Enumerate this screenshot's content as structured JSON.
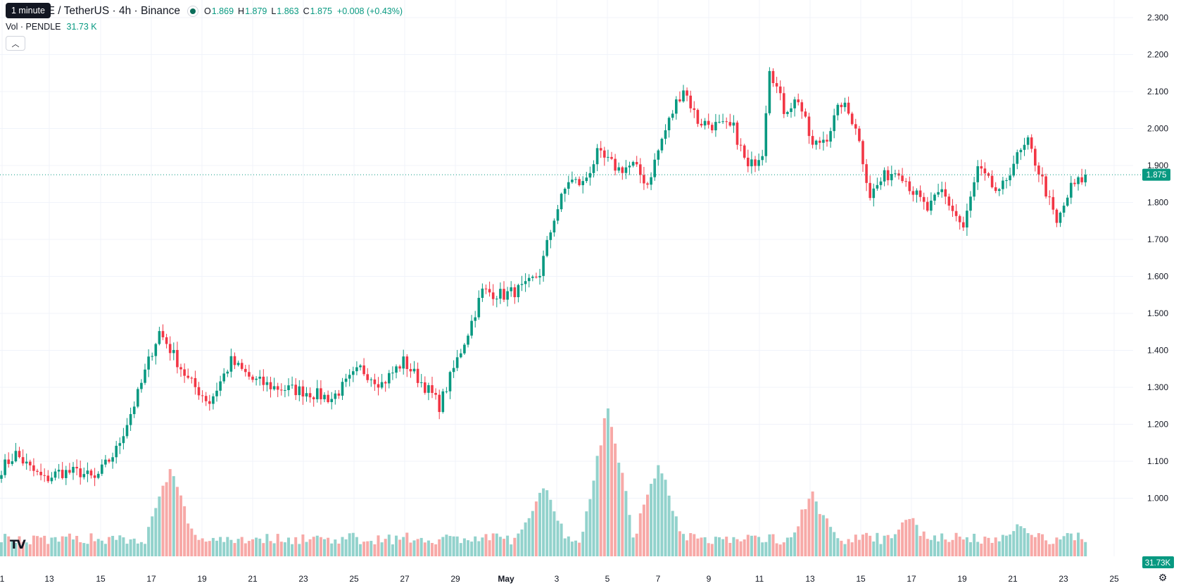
{
  "legend": {
    "symbol": "LE / TetherUS · 4h · Binance",
    "ohlc": [
      {
        "key": "O",
        "value": "1.869"
      },
      {
        "key": "H",
        "value": "1.879"
      },
      {
        "key": "L",
        "value": "1.863"
      },
      {
        "key": "C",
        "value": "1.875"
      }
    ],
    "change": "+0.008 (+0.43%)"
  },
  "tooltip": "1 minute",
  "volume_label": "Vol · PENDLE",
  "volume_value": "31.73 K",
  "collapse_icon": "chevron-up-icon",
  "logo_icon": "tradingview-logo-icon",
  "settings_icon": "gear-icon",
  "colors": {
    "up": "#089981",
    "down": "#f23645",
    "up_volume": "#92d2cc",
    "down_volume": "#f7a9a7",
    "grid": "#f0f3fa",
    "text": "#131722"
  },
  "chart_data": {
    "type": "candlestick",
    "price_axis": [
      "2.300",
      "2.200",
      "2.100",
      "2.000",
      "1.900",
      "1.800",
      "1.700",
      "1.600",
      "1.500",
      "1.400",
      "1.300",
      "1.200",
      "1.100",
      "1.000"
    ],
    "ylim": [
      0.96,
      2.32
    ],
    "x_ticks": [
      "1",
      "13",
      "15",
      "17",
      "19",
      "21",
      "23",
      "25",
      "27",
      "29",
      "May",
      "3",
      "5",
      "7",
      "9",
      "11",
      "13",
      "15",
      "17",
      "19",
      "21",
      "23",
      "25"
    ],
    "last_price": "1.875",
    "last_volume": "31.73K",
    "grid": true,
    "price_anchors": [
      [
        0,
        1.08
      ],
      [
        4,
        1.12
      ],
      [
        8,
        1.08
      ],
      [
        12,
        1.05
      ],
      [
        16,
        1.07
      ],
      [
        22,
        1.07
      ],
      [
        26,
        1.05
      ],
      [
        32,
        1.13
      ],
      [
        38,
        1.28
      ],
      [
        42,
        1.4
      ],
      [
        44,
        1.45
      ],
      [
        46,
        1.42
      ],
      [
        52,
        1.32
      ],
      [
        58,
        1.26
      ],
      [
        64,
        1.37
      ],
      [
        70,
        1.32
      ],
      [
        76,
        1.3
      ],
      [
        84,
        1.29
      ],
      [
        92,
        1.27
      ],
      [
        100,
        1.35
      ],
      [
        106,
        1.31
      ],
      [
        112,
        1.37
      ],
      [
        120,
        1.28
      ],
      [
        122,
        1.25
      ],
      [
        126,
        1.35
      ],
      [
        130,
        1.45
      ],
      [
        134,
        1.56
      ],
      [
        140,
        1.55
      ],
      [
        146,
        1.57
      ],
      [
        150,
        1.61
      ],
      [
        154,
        1.76
      ],
      [
        158,
        1.86
      ],
      [
        162,
        1.85
      ],
      [
        166,
        1.93
      ],
      [
        172,
        1.89
      ],
      [
        176,
        1.9
      ],
      [
        180,
        1.85
      ],
      [
        184,
        1.97
      ],
      [
        188,
        2.07
      ],
      [
        190,
        2.11
      ],
      [
        194,
        2.02
      ],
      [
        198,
        2.01
      ],
      [
        204,
        2.0
      ],
      [
        208,
        1.89
      ],
      [
        212,
        1.94
      ],
      [
        214,
        2.17
      ],
      [
        218,
        2.05
      ],
      [
        222,
        2.08
      ],
      [
        226,
        1.95
      ],
      [
        230,
        1.98
      ],
      [
        234,
        2.07
      ],
      [
        238,
        2.01
      ],
      [
        242,
        1.82
      ],
      [
        246,
        1.87
      ],
      [
        250,
        1.89
      ],
      [
        254,
        1.83
      ],
      [
        258,
        1.78
      ],
      [
        262,
        1.83
      ],
      [
        268,
        1.73
      ],
      [
        272,
        1.89
      ],
      [
        278,
        1.82
      ],
      [
        282,
        1.91
      ],
      [
        286,
        1.96
      ],
      [
        290,
        1.86
      ],
      [
        294,
        1.74
      ],
      [
        298,
        1.84
      ],
      [
        302,
        1.87
      ]
    ],
    "volume_peaks": [
      [
        47,
        0.55
      ],
      [
        151,
        0.45
      ],
      [
        169,
        1.0
      ],
      [
        183,
        0.6
      ],
      [
        226,
        0.38
      ],
      [
        253,
        0.22
      ],
      [
        283,
        0.16
      ]
    ]
  }
}
